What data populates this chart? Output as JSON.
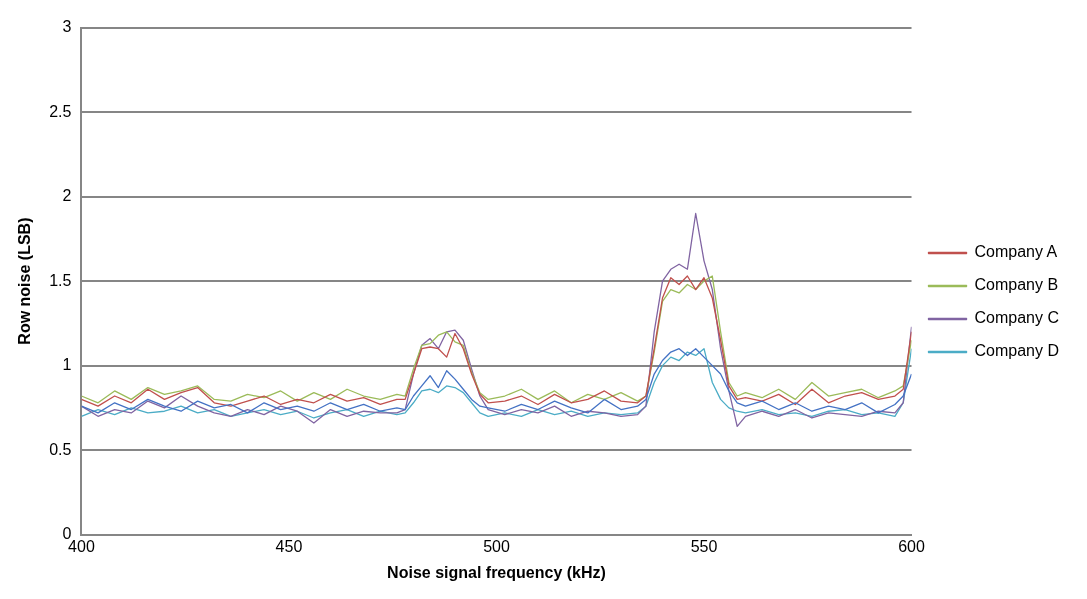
{
  "chart_data": {
    "type": "line",
    "xlabel": "Noise signal frequency (kHz)",
    "ylabel": "Row noise (LSB)",
    "x": [
      400,
      404,
      408,
      412,
      416,
      420,
      424,
      428,
      432,
      436,
      440,
      444,
      448,
      452,
      456,
      460,
      464,
      468,
      472,
      476,
      478,
      480,
      482,
      484,
      486,
      488,
      490,
      492,
      494,
      496,
      498,
      502,
      506,
      510,
      514,
      518,
      522,
      526,
      530,
      534,
      536,
      538,
      540,
      542,
      544,
      546,
      548,
      550,
      552,
      554,
      556,
      558,
      560,
      564,
      568,
      572,
      576,
      580,
      584,
      588,
      592,
      596,
      598,
      600
    ],
    "xlim": [
      400,
      600
    ],
    "xticks": [
      400,
      450,
      500,
      550,
      600
    ],
    "ylim": [
      0,
      3
    ],
    "yticks": [
      0,
      0.5,
      1,
      1.5,
      2,
      2.5,
      3
    ],
    "grid": "y",
    "legend": "right",
    "marker": "none",
    "line_style": "solid",
    "series": [
      {
        "color": "#4472c4",
        "values": [
          0.76,
          0.72,
          0.78,
          0.74,
          0.8,
          0.76,
          0.73,
          0.79,
          0.75,
          0.77,
          0.72,
          0.78,
          0.74,
          0.76,
          0.73,
          0.78,
          0.74,
          0.77,
          0.73,
          0.75,
          0.74,
          0.82,
          0.88,
          0.94,
          0.87,
          0.97,
          0.92,
          0.86,
          0.8,
          0.76,
          0.75,
          0.73,
          0.77,
          0.74,
          0.79,
          0.75,
          0.72,
          0.8,
          0.74,
          0.76,
          0.8,
          0.95,
          1.03,
          1.08,
          1.1,
          1.06,
          1.1,
          1.05,
          1.0,
          0.95,
          0.85,
          0.78,
          0.76,
          0.79,
          0.74,
          0.78,
          0.73,
          0.76,
          0.74,
          0.78,
          0.72,
          0.77,
          0.82,
          0.95
        ]
      },
      {
        "name": "Company A",
        "color": "#c0504d",
        "values": [
          0.8,
          0.76,
          0.82,
          0.78,
          0.86,
          0.8,
          0.84,
          0.87,
          0.78,
          0.76,
          0.79,
          0.82,
          0.77,
          0.8,
          0.78,
          0.83,
          0.79,
          0.81,
          0.77,
          0.8,
          0.8,
          0.95,
          1.1,
          1.11,
          1.1,
          1.05,
          1.19,
          1.1,
          0.95,
          0.83,
          0.78,
          0.79,
          0.82,
          0.77,
          0.83,
          0.78,
          0.8,
          0.85,
          0.79,
          0.78,
          0.82,
          1.1,
          1.4,
          1.52,
          1.48,
          1.53,
          1.45,
          1.52,
          1.4,
          1.15,
          0.88,
          0.8,
          0.81,
          0.79,
          0.83,
          0.77,
          0.86,
          0.78,
          0.82,
          0.84,
          0.8,
          0.82,
          0.86,
          1.2
        ]
      },
      {
        "name": "Company B",
        "color": "#9bbb59",
        "values": [
          0.82,
          0.78,
          0.85,
          0.8,
          0.87,
          0.83,
          0.85,
          0.88,
          0.8,
          0.79,
          0.83,
          0.81,
          0.85,
          0.79,
          0.84,
          0.8,
          0.86,
          0.82,
          0.8,
          0.83,
          0.82,
          0.98,
          1.12,
          1.13,
          1.18,
          1.2,
          1.14,
          1.12,
          0.96,
          0.84,
          0.8,
          0.82,
          0.86,
          0.8,
          0.85,
          0.78,
          0.83,
          0.8,
          0.84,
          0.79,
          0.82,
          1.08,
          1.38,
          1.45,
          1.43,
          1.48,
          1.45,
          1.5,
          1.53,
          1.2,
          0.9,
          0.82,
          0.84,
          0.81,
          0.86,
          0.8,
          0.9,
          0.82,
          0.84,
          0.86,
          0.81,
          0.85,
          0.88,
          1.15
        ]
      },
      {
        "name": "Company C",
        "color": "#8064a2",
        "values": [
          0.76,
          0.7,
          0.74,
          0.72,
          0.79,
          0.75,
          0.82,
          0.76,
          0.72,
          0.7,
          0.74,
          0.71,
          0.76,
          0.73,
          0.66,
          0.74,
          0.7,
          0.73,
          0.72,
          0.72,
          0.74,
          0.95,
          1.12,
          1.16,
          1.1,
          1.2,
          1.21,
          1.15,
          0.98,
          0.82,
          0.74,
          0.71,
          0.74,
          0.72,
          0.76,
          0.7,
          0.73,
          0.72,
          0.7,
          0.71,
          0.76,
          1.2,
          1.5,
          1.57,
          1.6,
          1.57,
          1.9,
          1.62,
          1.45,
          1.1,
          0.85,
          0.64,
          0.7,
          0.73,
          0.7,
          0.74,
          0.69,
          0.72,
          0.71,
          0.7,
          0.73,
          0.72,
          0.78,
          1.23
        ]
      },
      {
        "name": "Company D",
        "color": "#4bacc6",
        "values": [
          0.7,
          0.74,
          0.71,
          0.75,
          0.72,
          0.73,
          0.76,
          0.72,
          0.74,
          0.7,
          0.72,
          0.74,
          0.71,
          0.73,
          0.69,
          0.72,
          0.74,
          0.7,
          0.73,
          0.71,
          0.72,
          0.78,
          0.85,
          0.86,
          0.84,
          0.88,
          0.87,
          0.84,
          0.78,
          0.72,
          0.7,
          0.72,
          0.7,
          0.74,
          0.71,
          0.73,
          0.7,
          0.72,
          0.71,
          0.72,
          0.76,
          0.9,
          1.0,
          1.05,
          1.03,
          1.08,
          1.06,
          1.1,
          0.9,
          0.8,
          0.75,
          0.73,
          0.72,
          0.74,
          0.71,
          0.72,
          0.7,
          0.73,
          0.74,
          0.71,
          0.72,
          0.7,
          0.78,
          1.1
        ]
      }
    ]
  }
}
